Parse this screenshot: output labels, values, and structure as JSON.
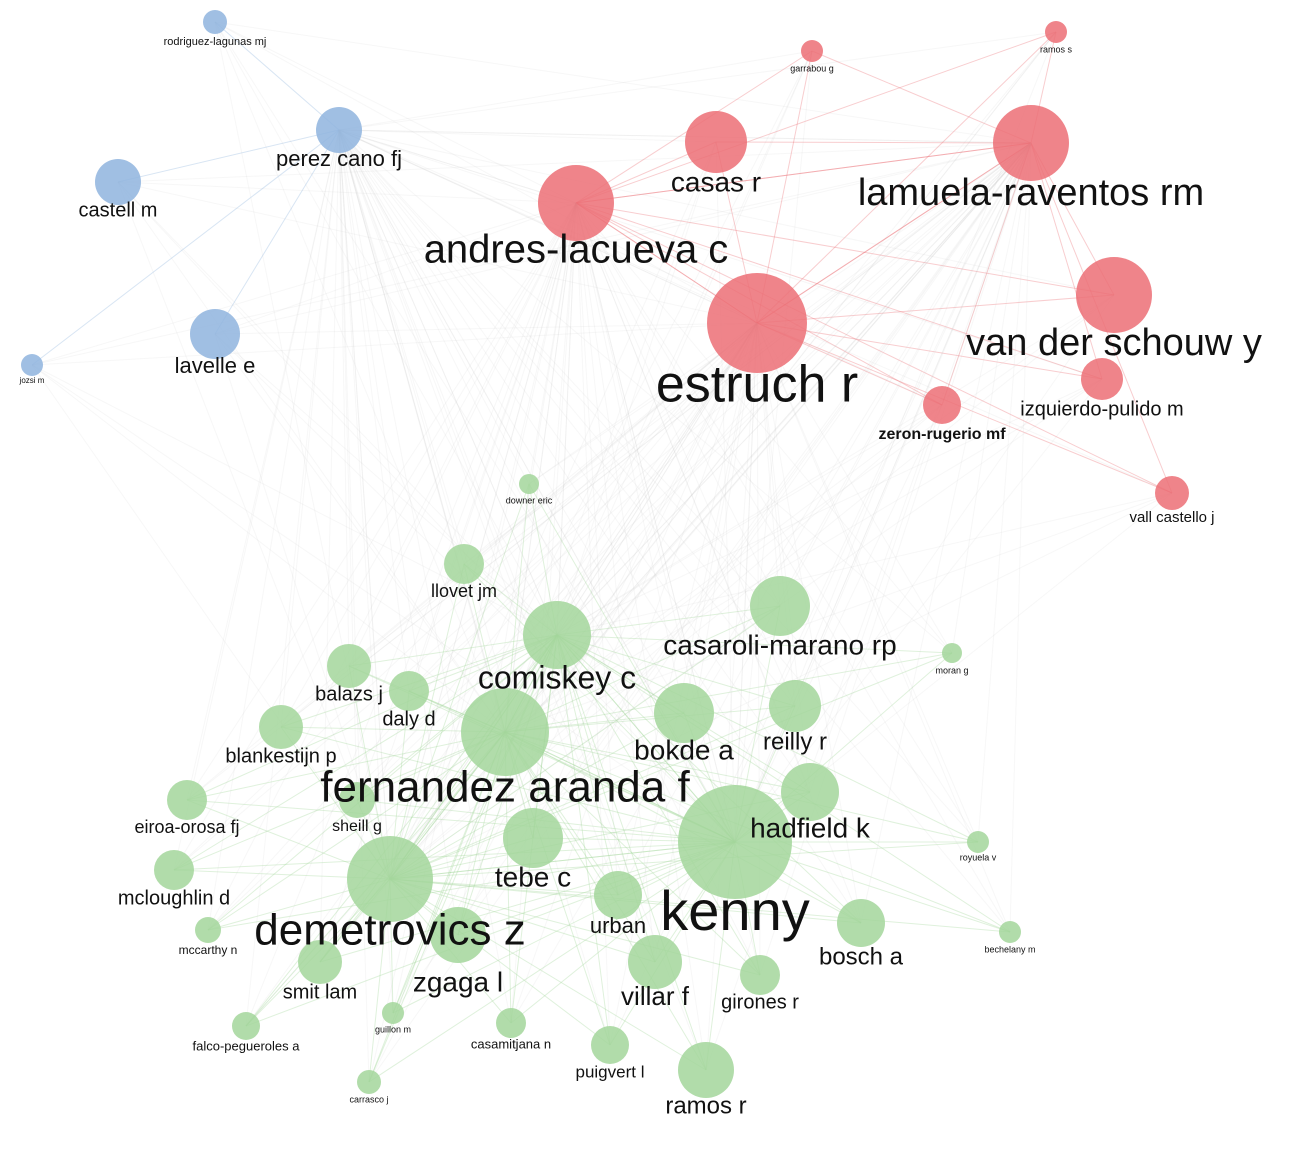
{
  "nodes": [
    {
      "label": "rodriguez-lagunas mj",
      "color": "#8fb4de"
    },
    {
      "label": "perez cano fj",
      "color": "#8fb4de"
    },
    {
      "label": "castell m",
      "color": "#8fb4de"
    },
    {
      "label": "lavelle e",
      "color": "#8fb4de"
    },
    {
      "label": "jozsi m",
      "color": "#8fb4de"
    },
    {
      "label": "garrabou g",
      "color": "#ec6f75"
    },
    {
      "label": "ramos s",
      "color": "#ec6f75"
    },
    {
      "label": "casas r",
      "color": "#ec6f75"
    },
    {
      "label": "lamuela-raventos rm",
      "color": "#ec6f75"
    },
    {
      "label": "andres-lacueva c",
      "color": "#ec6f75"
    },
    {
      "label": "estruch r",
      "color": "#ec6f75"
    },
    {
      "label": "van der schouw y",
      "color": "#ec6f75"
    },
    {
      "label": "izquierdo-pulido m",
      "color": "#ec6f75"
    },
    {
      "label": "zeron-rugerio mf",
      "color": "#ec6f75"
    },
    {
      "label": "vall castello j",
      "color": "#ec6f75"
    },
    {
      "label": "downer eric",
      "color": "#a3d69b"
    },
    {
      "label": "llovet jm",
      "color": "#a3d69b"
    },
    {
      "label": "casaroli-marano rp",
      "color": "#a3d69b"
    },
    {
      "label": "comiskey c",
      "color": "#a3d69b"
    },
    {
      "label": "moran g",
      "color": "#a3d69b"
    },
    {
      "label": "balazs j",
      "color": "#a3d69b"
    },
    {
      "label": "daly d",
      "color": "#a3d69b"
    },
    {
      "label": "bokde a",
      "color": "#a3d69b"
    },
    {
      "label": "reilly r",
      "color": "#a3d69b"
    },
    {
      "label": "blankestijn p",
      "color": "#a3d69b"
    },
    {
      "label": "fernandez aranda f",
      "color": "#a3d69b"
    },
    {
      "label": "hadfield k",
      "color": "#a3d69b"
    },
    {
      "label": "eiroa-orosa fj",
      "color": "#a3d69b"
    },
    {
      "label": "sheill g",
      "color": "#a3d69b"
    },
    {
      "label": "kenny",
      "color": "#a3d69b"
    },
    {
      "label": "tebe c",
      "color": "#a3d69b"
    },
    {
      "label": "royuela v",
      "color": "#a3d69b"
    },
    {
      "label": "demetrovics z",
      "color": "#a3d69b"
    },
    {
      "label": "mcloughlin d",
      "color": "#a3d69b"
    },
    {
      "label": "urban",
      "color": "#a3d69b"
    },
    {
      "label": "bosch a",
      "color": "#a3d69b"
    },
    {
      "label": "mccarthy n",
      "color": "#a3d69b"
    },
    {
      "label": "bechelany m",
      "color": "#a3d69b"
    },
    {
      "label": "zgaga l",
      "color": "#a3d69b"
    },
    {
      "label": "smit lam",
      "color": "#a3d69b"
    },
    {
      "label": "villar f",
      "color": "#a3d69b"
    },
    {
      "label": "girones r",
      "color": "#a3d69b"
    },
    {
      "label": "guillon m",
      "color": "#a3d69b"
    },
    {
      "label": "falco-pegueroles a",
      "color": "#a3d69b"
    },
    {
      "label": "casamitjana n",
      "color": "#a3d69b"
    },
    {
      "label": "puigvert l",
      "color": "#a3d69b"
    },
    {
      "label": "ramos r",
      "color": "#a3d69b"
    },
    {
      "label": "carrasco j",
      "color": "#a3d69b"
    }
  ]
}
